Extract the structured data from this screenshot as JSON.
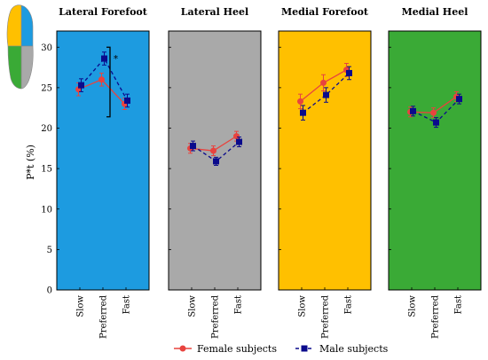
{
  "figure": {
    "ylabel": "P*t (%)",
    "significance_marker": "*"
  },
  "colors": {
    "female": "#e8433e",
    "male": "#0a0a8c",
    "lateral_forefoot": "#1d9be0",
    "lateral_heel": "#a9a9a9",
    "medial_forefoot": "#ffc000",
    "medial_heel": "#3aaa36",
    "foot_outline": "#888888"
  },
  "legend": {
    "female_label": "Female subjects",
    "male_label": "Male subjects",
    "placement": "bottom-center"
  },
  "chart_data": [
    {
      "type": "line",
      "title": "Lateral Forefoot",
      "categories": [
        "Slow",
        "Preferred",
        "Fast"
      ],
      "ylim": [
        0,
        32
      ],
      "yticks": [
        0,
        5,
        10,
        15,
        20,
        25,
        30
      ],
      "grid": false,
      "series": [
        {
          "name": "Female subjects",
          "values": [
            24.8,
            26.0,
            23.0
          ],
          "errors": [
            0.8,
            0.8,
            0.7
          ]
        },
        {
          "name": "Male subjects",
          "values": [
            25.3,
            28.6,
            23.4
          ],
          "errors": [
            0.8,
            0.8,
            0.8
          ]
        }
      ]
    },
    {
      "type": "line",
      "title": "Lateral Heel",
      "categories": [
        "Slow",
        "Preferred",
        "Fast"
      ],
      "ylim": [
        0,
        32
      ],
      "yticks": [
        0,
        5,
        10,
        15,
        20,
        25,
        30
      ],
      "grid": false,
      "series": [
        {
          "name": "Female subjects",
          "values": [
            17.5,
            17.2,
            19.0
          ],
          "errors": [
            0.6,
            0.6,
            0.6
          ]
        },
        {
          "name": "Male subjects",
          "values": [
            17.8,
            15.9,
            18.3
          ],
          "errors": [
            0.6,
            0.5,
            0.6
          ]
        }
      ]
    },
    {
      "type": "line",
      "title": "Medial Forefoot",
      "categories": [
        "Slow",
        "Preferred",
        "Fast"
      ],
      "ylim": [
        0,
        32
      ],
      "yticks": [
        0,
        5,
        10,
        15,
        20,
        25,
        30
      ],
      "grid": false,
      "series": [
        {
          "name": "Female subjects",
          "values": [
            23.3,
            25.6,
            27.2
          ],
          "errors": [
            0.9,
            1.0,
            0.8
          ]
        },
        {
          "name": "Male subjects",
          "values": [
            21.9,
            24.1,
            26.8
          ],
          "errors": [
            0.9,
            0.9,
            0.8
          ]
        }
      ]
    },
    {
      "type": "line",
      "title": "Medial Heel",
      "categories": [
        "Slow",
        "Preferred",
        "Fast"
      ],
      "ylim": [
        0,
        32
      ],
      "yticks": [
        0,
        5,
        10,
        15,
        20,
        25,
        30
      ],
      "grid": false,
      "series": [
        {
          "name": "Female subjects",
          "values": [
            22.0,
            21.9,
            23.9
          ],
          "errors": [
            0.6,
            0.6,
            0.6
          ]
        },
        {
          "name": "Male subjects",
          "values": [
            22.1,
            20.7,
            23.6
          ],
          "errors": [
            0.6,
            0.6,
            0.6
          ]
        }
      ]
    }
  ]
}
